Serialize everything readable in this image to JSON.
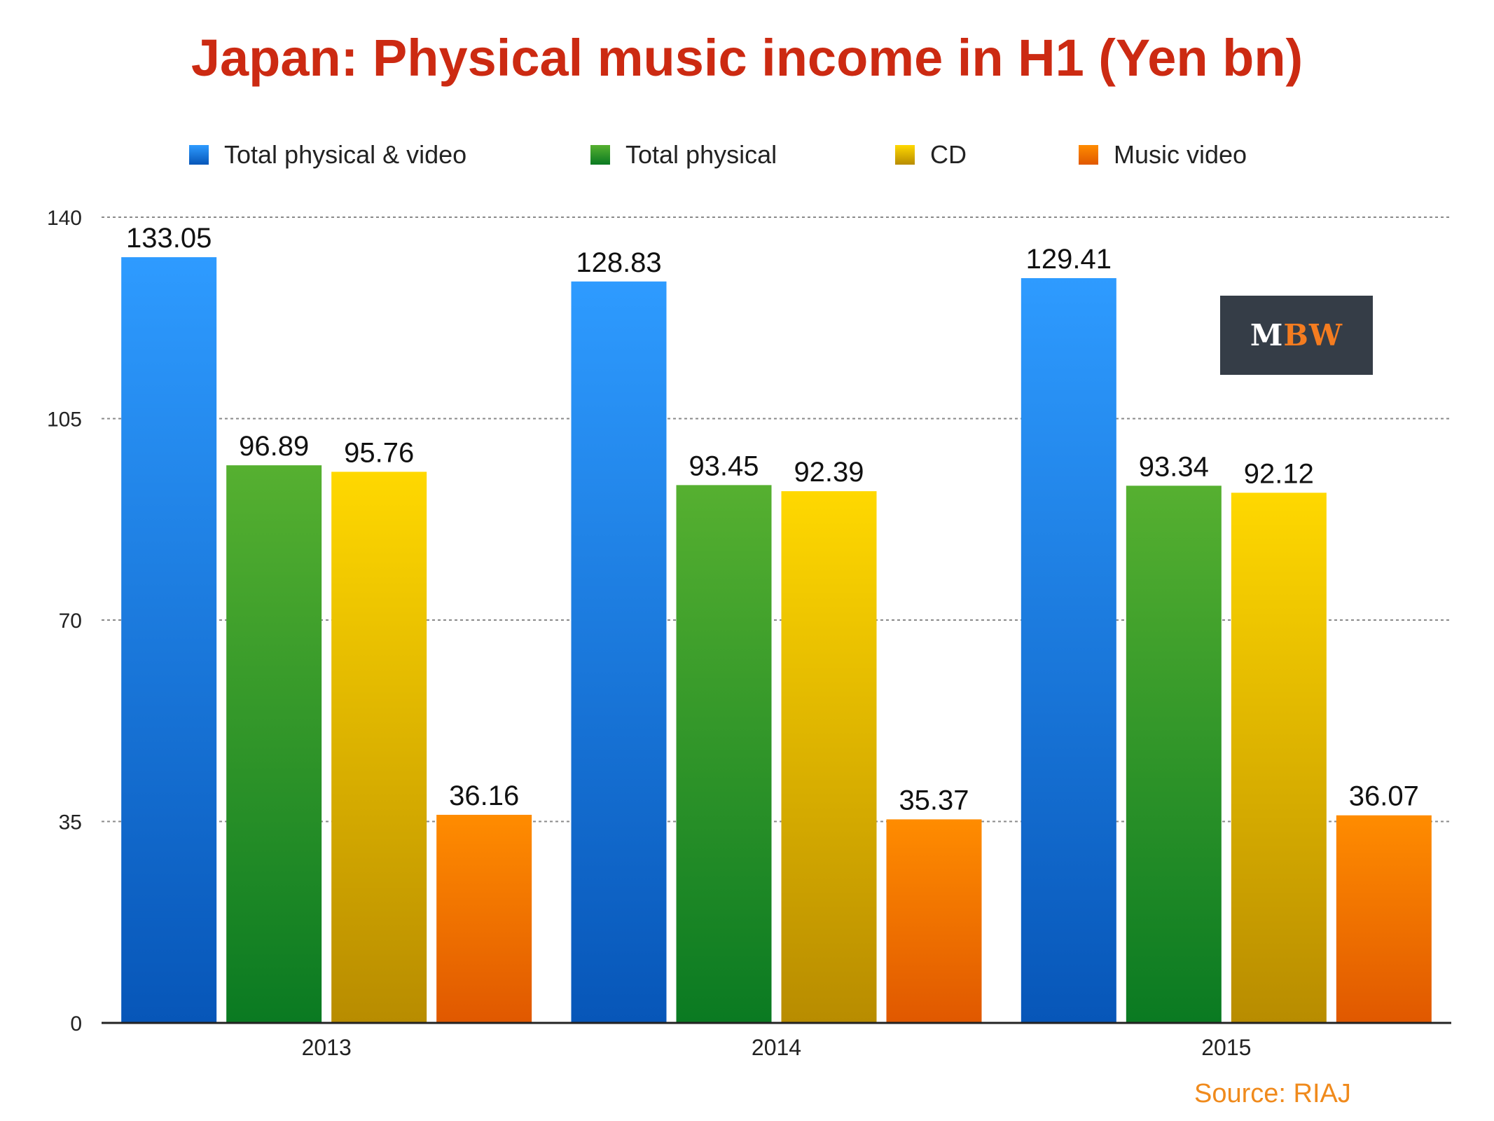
{
  "colors": {
    "title": "#cc2a12",
    "source": "#f08a1c",
    "logo_bg": "#353d47",
    "logo_text_light": "#ffffff",
    "logo_text_accent": "#f47c20"
  },
  "logo": {
    "part1": "M",
    "part2": "BW"
  },
  "source": "Source: RIAJ",
  "chart_data": {
    "type": "bar",
    "title": "Japan: Physical music income in H1 (Yen bn)",
    "xlabel": "",
    "ylabel": "",
    "categories": [
      "2013",
      "2014",
      "2015"
    ],
    "ylim": [
      0,
      140
    ],
    "yticks": [
      0,
      35,
      70,
      105,
      140
    ],
    "grid": true,
    "legend_position": "top",
    "data_labels": true,
    "series": [
      {
        "name": "Total physical & video",
        "values": [
          133.05,
          128.83,
          129.41
        ],
        "color_top": "#2e9bff",
        "color_bottom": "#0756b8",
        "swatch": "#1a7be6"
      },
      {
        "name": "Total physical",
        "values": [
          96.89,
          93.45,
          93.34
        ],
        "color_top": "#56b030",
        "color_bottom": "#0a7a22",
        "swatch": "#1f8f2e"
      },
      {
        "name": "CD",
        "values": [
          95.76,
          92.39,
          92.12
        ],
        "color_top": "#ffd800",
        "color_bottom": "#b88c00",
        "swatch": "#e0b000"
      },
      {
        "name": "Music video",
        "values": [
          36.16,
          35.37,
          36.07
        ],
        "color_top": "#ff8c00",
        "color_bottom": "#e05800",
        "swatch": "#f06a00"
      }
    ]
  }
}
